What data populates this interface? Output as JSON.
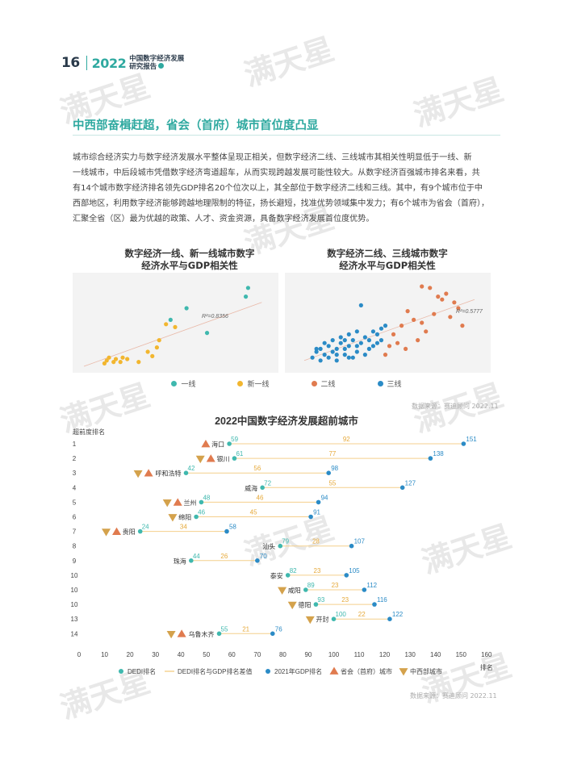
{
  "header": {
    "page_number": "16",
    "year": "2022",
    "title_line1": "中国数字经济发展",
    "title_line2": "研究报告"
  },
  "watermark": "满天星",
  "section": {
    "title": "中西部奋楫赶超，省会（首府）城市首位度凸显"
  },
  "paragraph": [
    "城市综合经济实力与数字经济发展水平整体呈现正相关，但数字经济二线、三线城市其相关性明显低于一线、新",
    "一线城市，中后段城市凭借数字经济弯道超车，从而实现跨越发展可能性较大。从数字经济百强城市排名来看，共",
    "有14个城市数字经济排名领先GDP排名20个位次以上，其全部位于数字经济二线和三线。其中，有9个城市位于中",
    "西部地区，利用数字经济能够跨越地理限制的特征，扬长避短，找准优势领域集中发力；有6个城市为省会（首府），",
    "汇聚全省（区）最为优越的政策、人才、资金资源，具备数字经济发展首位度优势。"
  ],
  "scatter_left": {
    "title_line1": "数字经济一线、新一线城市数字",
    "title_line2": "经济水平与GDP相关性",
    "r2": "R²=0.8356"
  },
  "scatter_right": {
    "title_line1": "数字经济二线、三线城市数字",
    "title_line2": "经济水平与GDP相关性",
    "r2": "R²=0.5777"
  },
  "legend1": [
    {
      "label": "一线",
      "color": "#3fb8ae"
    },
    {
      "label": "新一线",
      "color": "#f2b62f"
    },
    {
      "label": "二线",
      "color": "#e07b4f"
    },
    {
      "label": "三线",
      "color": "#2b8bc6"
    }
  ],
  "source_text": "数据来源：赛迪顾问 2022.11",
  "colors": {
    "teal": "#3fb8ae",
    "yellow": "#f2b62f",
    "orange": "#e07b4f",
    "blue": "#2b8bc6",
    "gap_line": "#f4cf8c",
    "gap_text": "#e6a93a",
    "province_marker": "#e07b4f",
    "midwest_marker": "#d4a24c"
  },
  "main_chart": {
    "title": "2022中国数字经济发展超前城市",
    "y_axis_label": "超前度排名",
    "x_axis_label": "排名",
    "x_ticks": [
      0,
      10,
      20,
      30,
      40,
      50,
      60,
      70,
      80,
      90,
      100,
      110,
      120,
      130,
      140,
      150,
      160
    ],
    "legend": [
      {
        "label": "DEDI排名",
        "type": "dot",
        "color": "#3fb8ae"
      },
      {
        "label": "DEDI排名与GDP排名差值",
        "type": "line",
        "color": "#f4cf8c"
      },
      {
        "label": "2021年GDP排名",
        "type": "dot",
        "color": "#2b8bc6"
      },
      {
        "label": "省会（首府）城市",
        "type": "tri-up",
        "color": "#e07b4f"
      },
      {
        "label": "中西部城市",
        "type": "tri-down",
        "color": "#d4a24c"
      }
    ]
  },
  "chart_data": [
    {
      "type": "scatter",
      "title": "数字经济一线、新一线城市数字经济水平与GDP相关性",
      "annotation": "R²=0.8356",
      "series": [
        {
          "name": "一线",
          "points": [
            [
              72,
              54
            ],
            [
              71,
              48
            ],
            [
              45,
              40
            ],
            [
              38,
              32
            ],
            [
              54,
              23
            ]
          ]
        },
        {
          "name": "新一线",
          "points": [
            [
              9,
              2
            ],
            [
              10,
              4
            ],
            [
              11,
              6
            ],
            [
              13,
              3
            ],
            [
              14,
              5
            ],
            [
              16,
              3
            ],
            [
              17,
              6
            ],
            [
              19,
              5
            ],
            [
              24,
              3
            ],
            [
              28,
              10
            ],
            [
              32,
              13
            ],
            [
              33,
              18
            ],
            [
              36,
              29
            ],
            [
              30,
              7
            ],
            [
              40,
              27
            ]
          ]
        }
      ]
    },
    {
      "type": "scatter",
      "title": "数字经济二线、三线城市数字经济水平与GDP相关性",
      "annotation": "R²=0.5777",
      "series": [
        {
          "name": "二线",
          "points": [
            [
              62,
              55
            ],
            [
              66,
              54
            ],
            [
              70,
              48
            ],
            [
              72,
              46
            ],
            [
              74,
              50
            ],
            [
              78,
              44
            ],
            [
              80,
              40
            ],
            [
              55,
              38
            ],
            [
              58,
              32
            ],
            [
              62,
              30
            ],
            [
              64,
              24
            ],
            [
              68,
              36
            ],
            [
              60,
              18
            ],
            [
              52,
              28
            ],
            [
              50,
              16
            ],
            [
              48,
              22
            ],
            [
              46,
              14
            ],
            [
              54,
              12
            ],
            [
              76,
              34
            ],
            [
              82,
              28
            ],
            [
              44,
              8
            ]
          ]
        },
        {
          "name": "三线",
          "points": [
            [
              8,
              6
            ],
            [
              10,
              10
            ],
            [
              12,
              12
            ],
            [
              14,
              8
            ],
            [
              16,
              14
            ],
            [
              18,
              10
            ],
            [
              20,
              12
            ],
            [
              22,
              16
            ],
            [
              24,
              8
            ],
            [
              26,
              14
            ],
            [
              28,
              18
            ],
            [
              30,
              10
            ],
            [
              32,
              16
            ],
            [
              34,
              20
            ],
            [
              36,
              18
            ],
            [
              38,
              24
            ],
            [
              40,
              22
            ],
            [
              42,
              26
            ],
            [
              44,
              28
            ],
            [
              12,
              4
            ],
            [
              16,
              6
            ],
            [
              20,
              4
            ],
            [
              24,
              12
            ],
            [
              28,
              6
            ],
            [
              18,
              18
            ],
            [
              22,
              20
            ],
            [
              26,
              22
            ],
            [
              30,
              14
            ],
            [
              32,
              42
            ],
            [
              36,
              12
            ],
            [
              40,
              16
            ],
            [
              20,
              8
            ],
            [
              14,
              16
            ],
            [
              10,
              12
            ],
            [
              34,
              8
            ],
            [
              38,
              14
            ],
            [
              42,
              18
            ],
            [
              26,
              6
            ],
            [
              30,
              24
            ],
            [
              24,
              18
            ]
          ]
        }
      ]
    },
    {
      "type": "dumbbell",
      "title": "2022中国数字经济发展超前城市",
      "xlabel": "排名",
      "ylabel": "超前度排名",
      "xlim": [
        0,
        160
      ],
      "rows": [
        {
          "rank": 1,
          "city": "海口",
          "dedi": 59,
          "gdp": 151,
          "diff": 92,
          "province": true,
          "midwest": false
        },
        {
          "rank": 2,
          "city": "银川",
          "dedi": 61,
          "gdp": 138,
          "diff": 77,
          "province": true,
          "midwest": true
        },
        {
          "rank": 3,
          "city": "呼和浩特",
          "dedi": 42,
          "gdp": 98,
          "diff": 56,
          "province": true,
          "midwest": true
        },
        {
          "rank": 4,
          "city": "威海",
          "dedi": 72,
          "gdp": 127,
          "diff": 55,
          "province": false,
          "midwest": false
        },
        {
          "rank": 5,
          "city": "兰州",
          "dedi": 48,
          "gdp": 94,
          "diff": 46,
          "province": true,
          "midwest": true
        },
        {
          "rank": 6,
          "city": "绵阳",
          "dedi": 46,
          "gdp": 91,
          "diff": 45,
          "province": false,
          "midwest": true
        },
        {
          "rank": 7,
          "city": "贵阳",
          "dedi": 24,
          "gdp": 58,
          "diff": 34,
          "province": true,
          "midwest": true
        },
        {
          "rank": 8,
          "city": "汕头",
          "dedi": 79,
          "gdp": 107,
          "diff": 28,
          "province": false,
          "midwest": false
        },
        {
          "rank": 9,
          "city": "珠海",
          "dedi": 44,
          "gdp": 70,
          "diff": 26,
          "province": false,
          "midwest": false
        },
        {
          "rank": 10,
          "city": "泰安",
          "dedi": 82,
          "gdp": 105,
          "diff": 23,
          "province": false,
          "midwest": false
        },
        {
          "rank": 10,
          "city": "咸阳",
          "dedi": 89,
          "gdp": 112,
          "diff": 23,
          "province": false,
          "midwest": true
        },
        {
          "rank": 10,
          "city": "德阳",
          "dedi": 93,
          "gdp": 116,
          "diff": 23,
          "province": false,
          "midwest": true
        },
        {
          "rank": 13,
          "city": "开封",
          "dedi": 100,
          "gdp": 122,
          "diff": 22,
          "province": false,
          "midwest": true
        },
        {
          "rank": 14,
          "city": "乌鲁木齐",
          "dedi": 55,
          "gdp": 76,
          "diff": 21,
          "province": true,
          "midwest": true
        }
      ]
    }
  ]
}
